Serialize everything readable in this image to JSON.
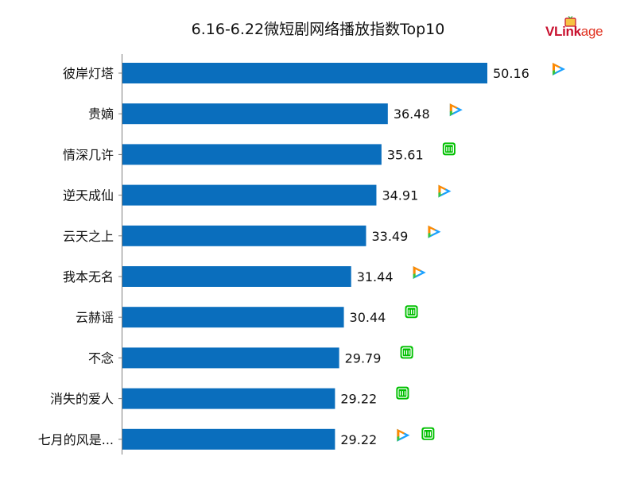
{
  "title": "6.16-6.22微短剧网络播放指数Top10",
  "logo": {
    "brand": "VLink",
    "suffix": "age"
  },
  "colors": {
    "bar": "#0a6ebd",
    "axis": "#7f7f7f",
    "tencent_icon": "tencent-video-icon",
    "iqiyi_icon": "iqiyi-icon"
  },
  "chart_data": {
    "type": "bar",
    "orientation": "horizontal",
    "title": "6.16-6.22微短剧网络播放指数Top10",
    "xlabel": "",
    "ylabel": "",
    "xlim": [
      0,
      60
    ],
    "grid": false,
    "legend": "none",
    "categories": [
      "彼岸灯塔",
      "贵嫡",
      "情深几许",
      "逆天成仙",
      "云天之上",
      "我本无名",
      "云赫谣",
      "不念",
      "消失的爱人",
      "七月的风是..."
    ],
    "values": [
      50.16,
      36.48,
      35.61,
      34.91,
      33.49,
      31.44,
      30.44,
      29.79,
      29.22,
      29.22
    ],
    "value_labels": [
      "50.16",
      "36.48",
      "35.61",
      "34.91",
      "33.49",
      "31.44",
      "30.44",
      "29.79",
      "29.22",
      "29.22"
    ],
    "platforms": [
      [
        "tencent"
      ],
      [
        "tencent"
      ],
      [
        "iqiyi"
      ],
      [
        "tencent"
      ],
      [
        "tencent"
      ],
      [
        "tencent"
      ],
      [
        "iqiyi"
      ],
      [
        "iqiyi"
      ],
      [
        "iqiyi"
      ],
      [
        "tencent",
        "iqiyi"
      ]
    ]
  }
}
